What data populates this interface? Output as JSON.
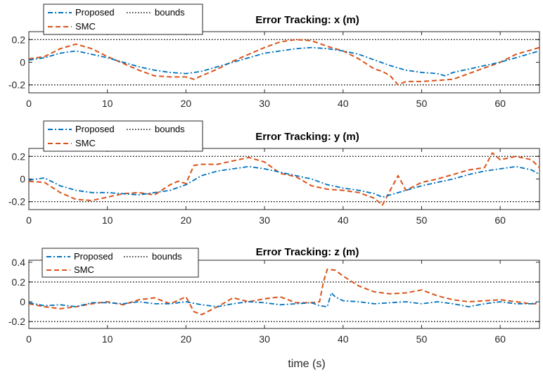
{
  "chart_data": [
    {
      "type": "line",
      "title": "Error Tracking: x (m)",
      "xlabel": "",
      "ylabel": "",
      "xlim": [
        0,
        65
      ],
      "ylim": [
        -0.27,
        0.27
      ],
      "xticks": [
        0,
        10,
        20,
        30,
        40,
        50,
        60
      ],
      "yticks": [
        -0.2,
        0,
        0.2
      ],
      "ytick_labels": [
        "-0.2",
        "0",
        "0.2"
      ],
      "legend": {
        "position": "top-left",
        "entries": [
          "Proposed",
          "bounds",
          "SMC"
        ]
      },
      "bounds": [
        0.2,
        -0.2
      ],
      "series": [
        {
          "name": "Proposed",
          "color": "#0072BD",
          "style": "dashdot",
          "x": [
            0,
            2,
            4,
            6,
            8,
            10,
            12,
            14,
            16,
            18,
            20,
            22,
            24,
            26,
            28,
            30,
            32,
            34,
            36,
            38,
            40,
            42,
            44,
            46,
            48,
            50,
            52,
            53,
            54,
            56,
            58,
            60,
            62,
            64,
            65
          ],
          "y": [
            0.02,
            0.04,
            0.08,
            0.1,
            0.07,
            0.04,
            0.0,
            -0.04,
            -0.07,
            -0.09,
            -0.1,
            -0.08,
            -0.04,
            0.0,
            0.04,
            0.08,
            0.1,
            0.12,
            0.13,
            0.12,
            0.1,
            0.07,
            0.02,
            -0.03,
            -0.07,
            -0.09,
            -0.1,
            -0.12,
            -0.09,
            -0.06,
            -0.03,
            0.0,
            0.04,
            0.08,
            0.1
          ]
        },
        {
          "name": "SMC",
          "color": "#D95319",
          "style": "dashed",
          "x": [
            0,
            2,
            4,
            6,
            8,
            10,
            12,
            14,
            16,
            18,
            20,
            21,
            22,
            24,
            26,
            28,
            30,
            32,
            34,
            36,
            38,
            40,
            42,
            44,
            45,
            46,
            47,
            48,
            50,
            52,
            54,
            56,
            58,
            60,
            62,
            64,
            65
          ],
          "y": [
            0.03,
            0.05,
            0.12,
            0.16,
            0.12,
            0.05,
            -0.01,
            -0.07,
            -0.12,
            -0.13,
            -0.13,
            -0.15,
            -0.12,
            -0.06,
            0.01,
            0.07,
            0.13,
            0.18,
            0.2,
            0.19,
            0.14,
            0.1,
            0.03,
            -0.06,
            -0.08,
            -0.12,
            -0.2,
            -0.17,
            -0.17,
            -0.16,
            -0.15,
            -0.1,
            -0.05,
            0.0,
            0.07,
            0.11,
            0.13
          ]
        },
        {
          "name": "bounds",
          "color": "#000000",
          "style": "dotted",
          "x": [
            0,
            65
          ],
          "y": [
            0.2,
            0.2
          ]
        }
      ]
    },
    {
      "type": "line",
      "title": "Error Tracking: y (m)",
      "xlabel": "",
      "ylabel": "",
      "xlim": [
        0,
        65
      ],
      "ylim": [
        -0.27,
        0.27
      ],
      "xticks": [
        0,
        10,
        20,
        30,
        40,
        50,
        60
      ],
      "yticks": [
        -0.2,
        0,
        0.2
      ],
      "ytick_labels": [
        "-0.2",
        "0",
        "0.2"
      ],
      "legend": {
        "position": "top-left",
        "entries": [
          "Proposed",
          "bounds",
          "SMC"
        ]
      },
      "bounds": [
        0.2,
        -0.2
      ],
      "series": [
        {
          "name": "Proposed",
          "color": "#0072BD",
          "style": "dashdot",
          "x": [
            0,
            2,
            4,
            6,
            8,
            10,
            12,
            14,
            16,
            18,
            20,
            22,
            24,
            26,
            28,
            30,
            32,
            34,
            36,
            38,
            40,
            42,
            44,
            45,
            46,
            48,
            50,
            52,
            54,
            56,
            58,
            60,
            62,
            64,
            65
          ],
          "y": [
            -0.01,
            0.01,
            -0.06,
            -0.1,
            -0.12,
            -0.12,
            -0.13,
            -0.14,
            -0.12,
            -0.1,
            -0.05,
            0.03,
            0.07,
            0.09,
            0.11,
            0.09,
            0.06,
            0.03,
            0.0,
            -0.05,
            -0.08,
            -0.1,
            -0.13,
            -0.16,
            -0.14,
            -0.1,
            -0.06,
            -0.03,
            0.0,
            0.04,
            0.07,
            0.09,
            0.11,
            0.08,
            0.04
          ]
        },
        {
          "name": "SMC",
          "color": "#D95319",
          "style": "dashed",
          "x": [
            0,
            2,
            4,
            6,
            8,
            10,
            12,
            14,
            16,
            18,
            19,
            20,
            21,
            22,
            24,
            26,
            28,
            30,
            32,
            34,
            36,
            38,
            40,
            42,
            44,
            45,
            46,
            47,
            48,
            50,
            52,
            54,
            56,
            58,
            59,
            60,
            62,
            64,
            65
          ],
          "y": [
            -0.02,
            -0.03,
            -0.12,
            -0.18,
            -0.19,
            -0.16,
            -0.13,
            -0.12,
            -0.14,
            -0.05,
            -0.02,
            -0.04,
            0.12,
            0.13,
            0.13,
            0.16,
            0.19,
            0.15,
            0.05,
            0.02,
            -0.06,
            -0.09,
            -0.1,
            -0.12,
            -0.17,
            -0.23,
            -0.1,
            0.03,
            -0.1,
            -0.03,
            0.0,
            0.04,
            0.08,
            0.1,
            0.23,
            0.17,
            0.2,
            0.17,
            0.1
          ]
        },
        {
          "name": "bounds",
          "color": "#000000",
          "style": "dotted",
          "x": [
            0,
            65
          ],
          "y": [
            0.2,
            0.2
          ]
        }
      ]
    },
    {
      "type": "line",
      "title": "Error Tracking: z (m)",
      "xlabel": "time (s)",
      "ylabel": "",
      "xlim": [
        0,
        65
      ],
      "ylim": [
        -0.27,
        0.42
      ],
      "xticks": [
        0,
        10,
        20,
        30,
        40,
        50,
        60
      ],
      "yticks": [
        -0.2,
        0,
        0.2,
        0.4
      ],
      "ytick_labels": [
        "-0.2",
        "0",
        "0.2",
        "0.4"
      ],
      "legend": {
        "position": "top-left",
        "entries": [
          "Proposed",
          "bounds",
          "SMC"
        ]
      },
      "bounds": [
        0.2,
        -0.2
      ],
      "series": [
        {
          "name": "Proposed",
          "color": "#0072BD",
          "style": "dashdot",
          "x": [
            0,
            2,
            4,
            6,
            8,
            10,
            12,
            14,
            16,
            18,
            20,
            22,
            24,
            26,
            28,
            30,
            32,
            34,
            36,
            37,
            38,
            38.5,
            39,
            40,
            42,
            44,
            46,
            48,
            50,
            52,
            54,
            56,
            58,
            60,
            62,
            64,
            65
          ],
          "y": [
            -0.01,
            -0.04,
            -0.03,
            -0.05,
            -0.01,
            -0.01,
            -0.02,
            0.0,
            -0.02,
            -0.02,
            0.0,
            -0.03,
            -0.05,
            -0.02,
            0.0,
            -0.01,
            -0.03,
            -0.02,
            -0.01,
            -0.04,
            -0.05,
            0.09,
            0.05,
            0.01,
            0.0,
            -0.02,
            -0.01,
            0.0,
            -0.02,
            0.0,
            -0.02,
            -0.05,
            -0.02,
            0.0,
            -0.02,
            -0.02,
            0.0
          ]
        },
        {
          "name": "SMC",
          "color": "#D95319",
          "style": "dashed",
          "x": [
            0,
            2,
            4,
            6,
            8,
            10,
            12,
            14,
            16,
            18,
            20,
            21,
            22,
            24,
            26,
            28,
            30,
            32,
            34,
            36,
            37,
            37.5,
            38,
            39,
            40,
            42,
            44,
            46,
            48,
            50,
            52,
            54,
            56,
            58,
            60,
            62,
            64,
            65
          ],
          "y": [
            -0.02,
            -0.05,
            -0.07,
            -0.05,
            -0.02,
            0.0,
            -0.03,
            0.02,
            0.04,
            -0.02,
            0.05,
            -0.1,
            -0.13,
            -0.05,
            0.04,
            0.0,
            0.03,
            0.05,
            -0.01,
            -0.01,
            0.0,
            0.2,
            0.33,
            0.32,
            0.26,
            0.16,
            0.1,
            0.08,
            0.09,
            0.12,
            0.06,
            0.02,
            0.0,
            0.01,
            0.02,
            0.0,
            -0.02,
            -0.02
          ]
        },
        {
          "name": "bounds",
          "color": "#000000",
          "style": "dotted",
          "x": [
            0,
            65
          ],
          "y": [
            0.2,
            0.2
          ]
        }
      ]
    }
  ]
}
